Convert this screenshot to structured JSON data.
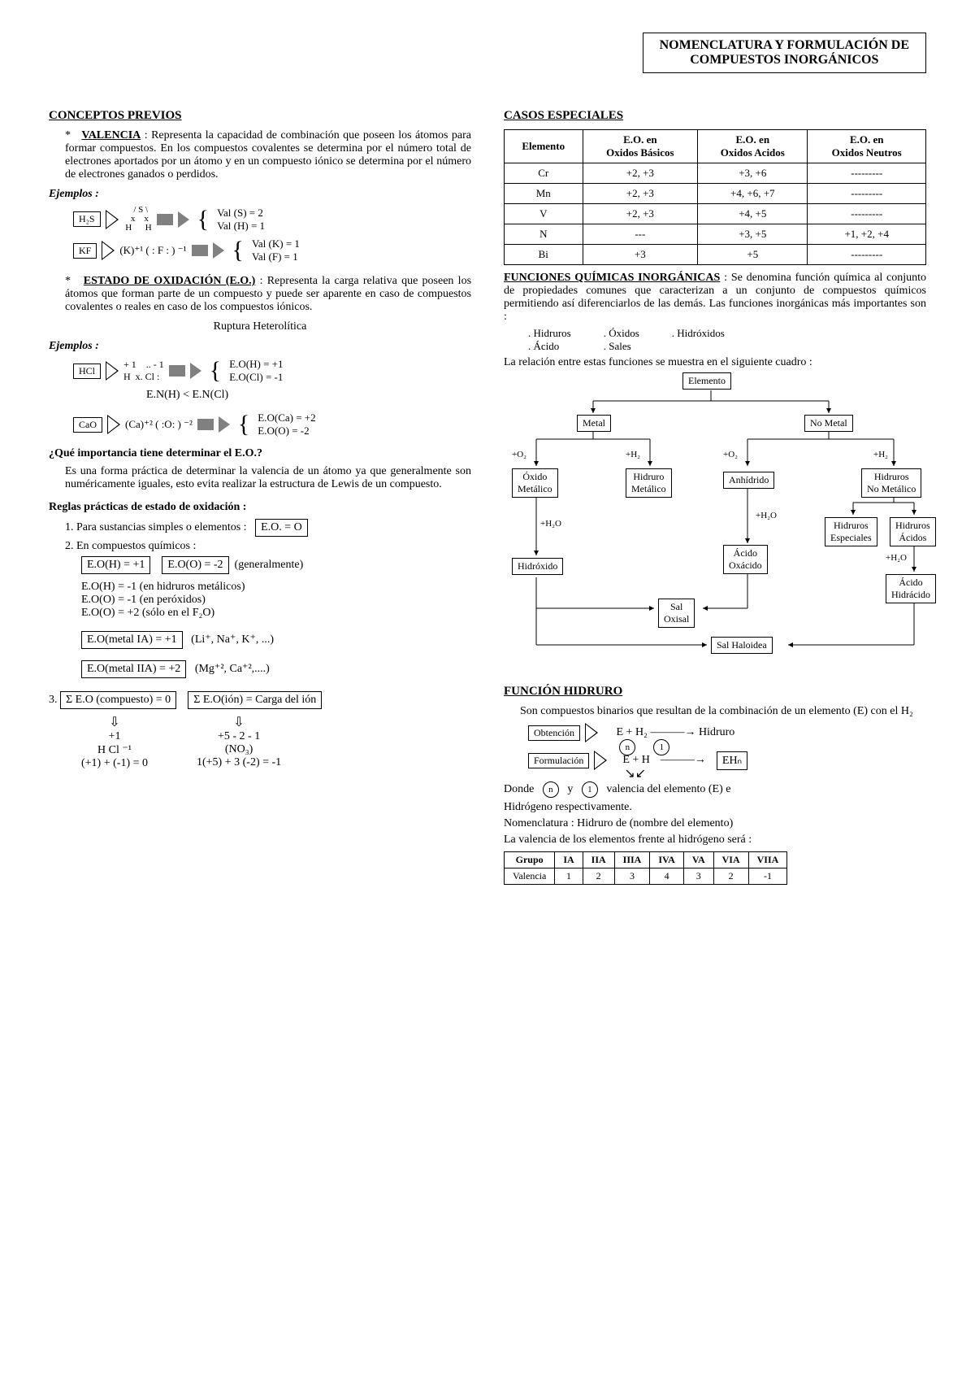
{
  "title": {
    "line1": "NOMENCLATURA Y FORMULACIÓN DE",
    "line2": "COMPUESTOS INORGÁNICOS"
  },
  "left": {
    "h_conceptos": "CONCEPTOS PREVIOS",
    "valencia_label": "VALENCIA",
    "valencia_text": ": Representa la capacidad de combinación que poseen los átomos para formar compuestos. En los compuestos covalentes se determina por el número total de electrones aportados por un átomo y en un compuesto iónico se determina por el número de electrones ganados o perdidos.",
    "ejemplos": "Ejemplos :",
    "ex1": {
      "box": "H₂S",
      "mid": "S  x  x  H  H",
      "v1": "Val (S) = 2",
      "v2": "Val (H) = 1"
    },
    "ex2": {
      "box": "KF",
      "mid": "(K)⁺¹  ( : F : ) ⁻¹",
      "v1": "Val (K) = 1",
      "v2": "Val  (F) = 1"
    },
    "estado_label": "ESTADO DE OXIDACIÓN (E.O.)",
    "estado_text": ": Representa la carga relativa que poseen los átomos que forman parte de un compuesto y puede ser aparente en caso de compuestos covalentes o reales en caso de los compuestos iónicos.",
    "ruptura": "Ruptura Heterolítica",
    "ex3": {
      "box": "HCl",
      "mid": "+ 1    .. - 1\nH  x. Cl :",
      "v1": "E.O(H)   =   +1",
      "v2": "E.O(Cl)  =  -1"
    },
    "en_rel": "E.N(H) < E.N(Cl)",
    "ex4": {
      "box": "CaO",
      "mid": "(Ca)⁺²  ( :O: ) ⁻²",
      "v1": "E.O(Ca) = +2",
      "v2": "E.O(O) = -2"
    },
    "q_importancia": "¿Qué importancia tiene determinar el E.O.?",
    "importancia_text": "Es una forma práctica de determinar la valencia de un átomo ya que generalmente son numéricamente iguales, esto evita realizar la estructura de Lewis de un compuesto.",
    "reglas_h": "Reglas prácticas de estado de oxidación :",
    "r1_text": "1. Para sustancias simples o elementos :",
    "r1_box": "E.O. = O",
    "r2_text": "2. En compuestos químicos :",
    "r2_box1": "E.O(H) = +1",
    "r2_box2": "E.O(O) = -2",
    "r2_gen": "(generalmente)",
    "r2_l1": "E.O(H) = -1 (en hidruros metálicos)",
    "r2_l2": "E.O(O) = -1 (en peróxidos)",
    "r2_l3": "E.O(O) = +2 (sólo en el F₂O)",
    "r2_box3": "E.O(metal IA) = +1",
    "r2_box3_note": "(Li⁺, Na⁺, K⁺, ...)",
    "r2_box4": "E.O(metal IIA) = +2",
    "r2_box4_note": "(Mg⁺², Ca⁺²,....)",
    "r3_box1": "Σ E.O (compuesto) = 0",
    "r3_box2": "Σ E.O(ión) = Carga del ión",
    "r3_ex1_l1": "+1",
    "r3_ex1_l2": "H Cl ⁻¹",
    "r3_ex1_l3": "(+1) + (-1) = 0",
    "r3_ex2_l1": "+5 - 2   - 1",
    "r3_ex2_l2": "(NO₃)",
    "r3_ex2_l3": "1(+5) + 3 (-2) = -1"
  },
  "right": {
    "h_casos": "CASOS ESPECIALES",
    "table": {
      "headers": [
        "Elemento",
        "E.O. en Oxidos Básicos",
        "E.O. en Oxidos Acidos",
        "E.O. en Oxidos Neutros"
      ],
      "rows": [
        [
          "Cr",
          "+2, +3",
          "+3, +6",
          "---------"
        ],
        [
          "Mn",
          "+2, +3",
          "+4, +6, +7",
          "---------"
        ],
        [
          "V",
          "+2, +3",
          "+4, +5",
          "---------"
        ],
        [
          "N",
          "---",
          "+3, +5",
          "+1, +2, +4"
        ],
        [
          "Bi",
          "+3",
          "+5",
          "---------"
        ]
      ]
    },
    "h_funciones": "FUNCIONES QUÍMICAS INORGÁNICAS",
    "funciones_text": ": Se denomina función química al conjunto de propiedades comunes que caracterizan a un conjunto de compuestos químicos permitiendo así diferenciarlos de las demás. Las funciones inorgánicas más importantes son :",
    "fn_list": {
      "c1a": ". Hidruros",
      "c1b": ". Ácido",
      "c2a": ". Óxidos",
      "c2b": ". Sales",
      "c3a": ". Hidróxidos"
    },
    "relacion_text": "La relación entre estas funciones se muestra en el siguiente cuadro :",
    "diagram": {
      "elemento": "Elemento",
      "metal": "Metal",
      "nometal": "No Metal",
      "o2": "+O₂",
      "h2": "+H₂",
      "h2o": "+H₂O",
      "oxmet": "Óxido\nMetálico",
      "hidmet": "Hidruro\nMetálico",
      "anh": "Anhídrido",
      "hidnm": "Hidruros\nNo Metálico",
      "hidrox": "Hidróxido",
      "acox": "Ácido\nOxácido",
      "hidesп": "Hidruros\nEspeciales",
      "hidac": "Hidruros\nÁcidos",
      "achid": "Ácido\nHidrácido",
      "salox": "Sal\nOxisal",
      "salhal": "Sal Haloidea"
    },
    "h_hidruro": "FUNCIÓN HIDRURO",
    "hidruro_text": "Son compuestos binarios que resultan de la combinación de un elemento (E) con el H₂",
    "obt_label": "Obtención",
    "obt_eq": "E   +   H₂  ———→  Hidruro",
    "form_label": "Formulación",
    "form_eq_left": "E  +  H",
    "form_eq_right": "EHₙ",
    "donde_text1": "Donde",
    "donde_text2": "y",
    "donde_text3": "valencia del   elemento    (E)    e",
    "donde_text4": "Hidrógeno respectivamente.",
    "nomen": "Nomenclatura : Hidruro de (nombre del elemento)",
    "valtable_intro": "La valencia de los elementos frente al hidrógeno será :",
    "valtable": {
      "h1": "Grupo",
      "cols": [
        "IA",
        "IIA",
        "IIIA",
        "IVA",
        "VA",
        "VIA",
        "VIIA"
      ],
      "h2": "Valencia",
      "vals": [
        "1",
        "2",
        "3",
        "4",
        "3",
        "2",
        "-1"
      ]
    }
  }
}
